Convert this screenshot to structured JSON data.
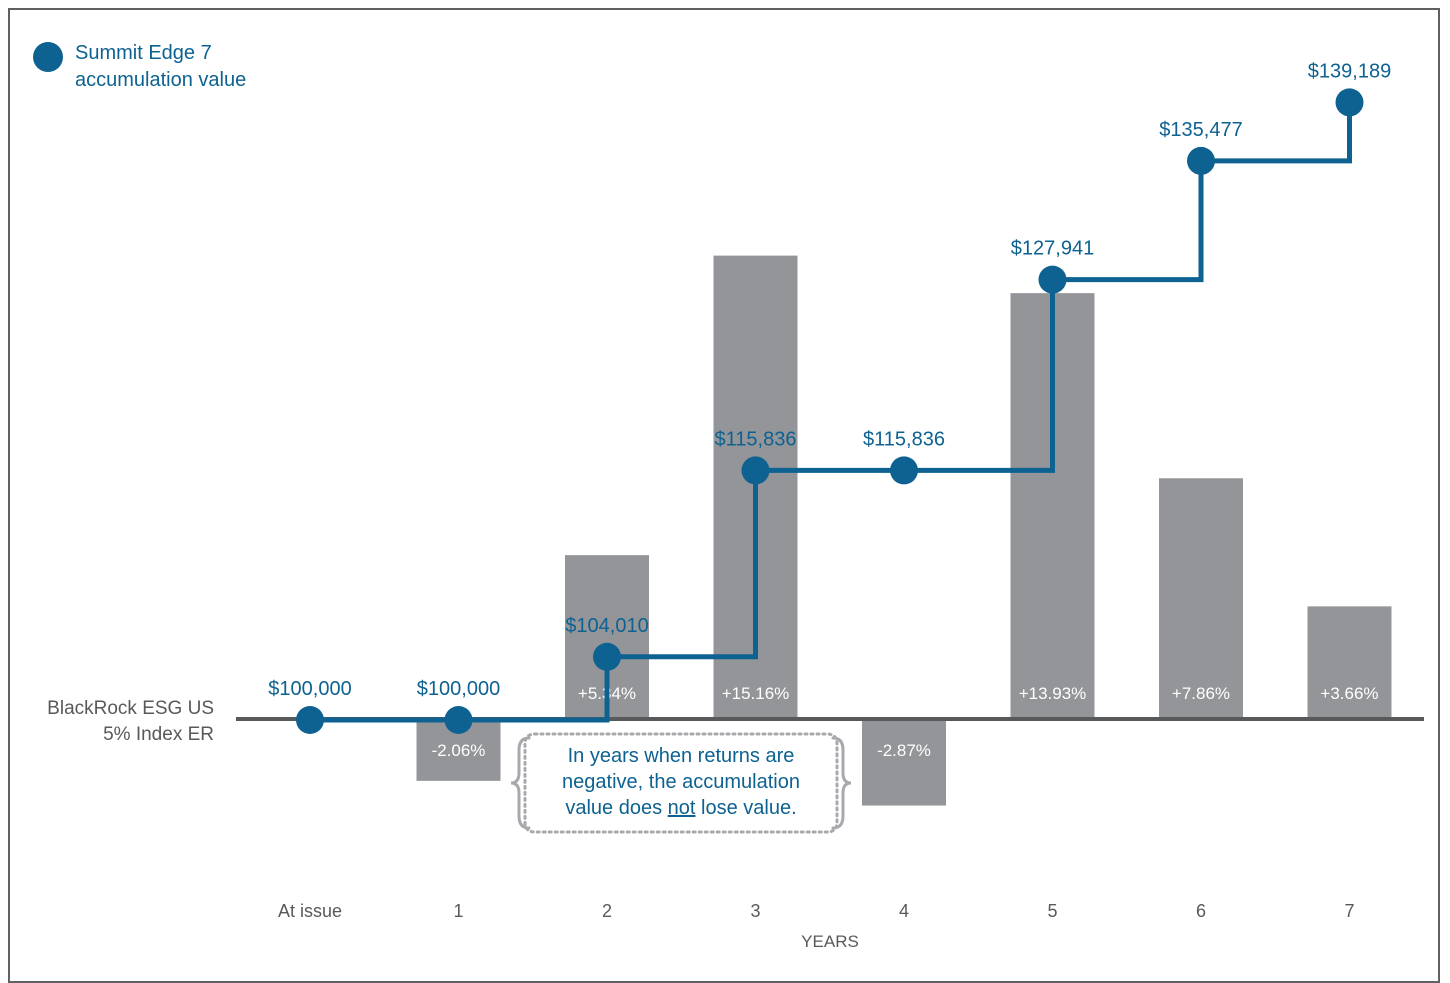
{
  "colors": {
    "accent": "#0d6291",
    "bar": "#939598",
    "axis": "#58595b",
    "text": "#58595b",
    "bar_label": "#ffffff",
    "bracket": "#a7a9ac"
  },
  "legend": {
    "label": "Summit Edge 7\naccumulation value"
  },
  "index_label": "BlackRock ESG US\n5% Index ER",
  "callout": {
    "line1": "In years when returns are",
    "line2": "negative, the accumulation",
    "line3_pre": "value does ",
    "line3_u": "not",
    "line3_post": " lose value."
  },
  "chart_data": {
    "type": "bar",
    "xlabel": "YEARS",
    "categories": [
      "At issue",
      "1",
      "2",
      "3",
      "4",
      "5",
      "6",
      "7"
    ],
    "series": [
      {
        "name": "BlackRock ESG US 5% Index ER",
        "type": "bar",
        "values": [
          null,
          -2.06,
          5.34,
          15.16,
          -2.87,
          13.93,
          7.86,
          3.66
        ],
        "labels": [
          "",
          "-2.06%",
          "+5.34%",
          "+15.16%",
          "-2.87%",
          "+13.93%",
          "+7.86%",
          "+3.66%"
        ]
      },
      {
        "name": "Summit Edge 7 accumulation value",
        "type": "step-line",
        "values": [
          100000,
          100000,
          104010,
          115836,
          115836,
          127941,
          135477,
          139189
        ],
        "labels": [
          "$100,000",
          "$100,000",
          "$104,010",
          "$115,836",
          "$115,836",
          "$127,941",
          "$135,477",
          "$139,189"
        ]
      }
    ]
  }
}
